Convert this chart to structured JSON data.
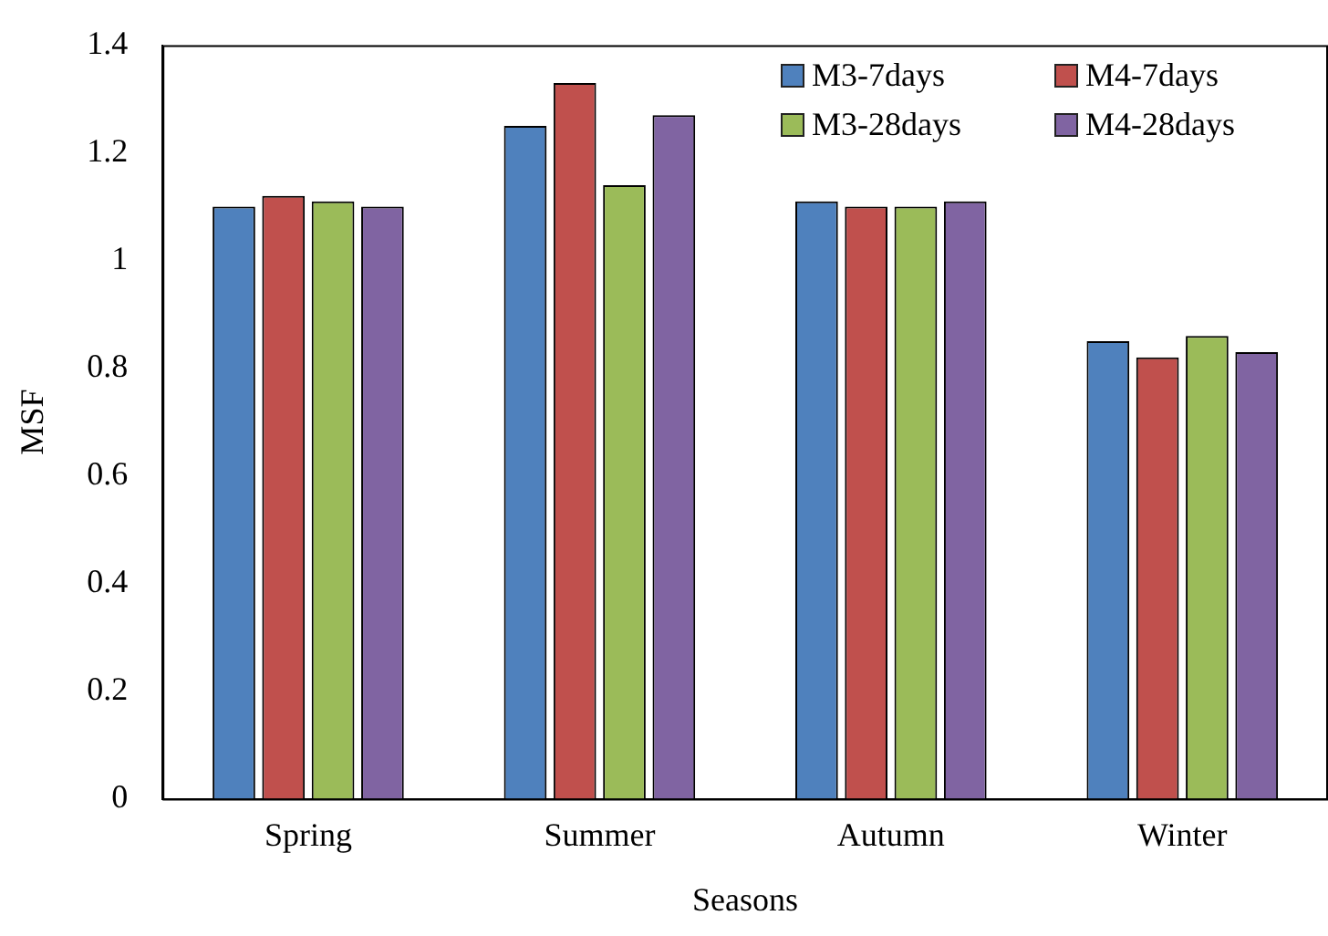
{
  "chart_data": {
    "type": "bar",
    "xlabel": "Seasons",
    "ylabel": "MSF",
    "categories": [
      "Spring",
      "Summer",
      "Autumn",
      "Winter"
    ],
    "series": [
      {
        "name": "M3-7days",
        "color": "#4f81bd",
        "values": [
          1.1,
          1.25,
          1.11,
          0.85
        ]
      },
      {
        "name": "M4-7days",
        "color": "#c0504d",
        "values": [
          1.12,
          1.33,
          1.1,
          0.82
        ]
      },
      {
        "name": "M3-28days",
        "color": "#9bbb59",
        "values": [
          1.11,
          1.14,
          1.1,
          0.86
        ]
      },
      {
        "name": "M4-28days",
        "color": "#8064a2",
        "values": [
          1.1,
          1.27,
          1.11,
          0.83
        ]
      }
    ],
    "ylim": [
      0,
      1.4
    ],
    "yticks": [
      0,
      0.2,
      0.4,
      0.6,
      0.8,
      1,
      1.2,
      1.4
    ],
    "grid": false,
    "legend": "top right"
  }
}
